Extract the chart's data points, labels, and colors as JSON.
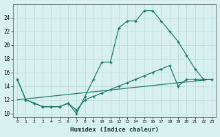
{
  "line1_x": [
    0,
    1,
    2,
    3,
    4,
    5,
    6,
    7,
    8,
    9,
    10,
    11,
    12,
    13,
    14,
    15,
    16,
    17,
    18,
    19,
    20,
    21,
    22,
    23
  ],
  "line1_y": [
    15,
    12,
    11.5,
    11,
    11,
    11,
    11.5,
    10,
    12.5,
    15,
    17.5,
    17.5,
    22.5,
    23.5,
    23.5,
    25,
    25,
    23.5,
    22,
    20.5,
    18.5,
    16.5,
    15,
    15
  ],
  "line2_x": [
    0,
    1,
    2,
    3,
    4,
    5,
    6,
    7,
    8,
    9,
    10,
    11,
    12,
    13,
    14,
    15,
    16,
    17,
    18,
    19,
    20,
    21,
    22,
    23
  ],
  "line2_y": [
    15,
    12,
    11.5,
    11,
    11,
    11,
    11.5,
    10.5,
    12,
    12.5,
    13,
    13.5,
    14,
    14.5,
    15,
    15.5,
    16,
    16.5,
    17,
    14,
    15,
    15,
    15,
    15
  ],
  "line3_x": [
    0,
    23
  ],
  "line3_y": [
    12,
    15
  ],
  "color": "#1a7a6a",
  "bg_color": "#d8f0f0",
  "xlabel": "Humidex (Indice chaleur)",
  "ylim": [
    9.5,
    26
  ],
  "xlim": [
    -0.5,
    23.5
  ],
  "yticks": [
    10,
    12,
    14,
    16,
    18,
    20,
    22,
    24
  ],
  "xticks": [
    0,
    1,
    2,
    3,
    4,
    5,
    6,
    7,
    8,
    9,
    10,
    11,
    12,
    13,
    14,
    15,
    16,
    17,
    18,
    19,
    20,
    21,
    22,
    23
  ]
}
